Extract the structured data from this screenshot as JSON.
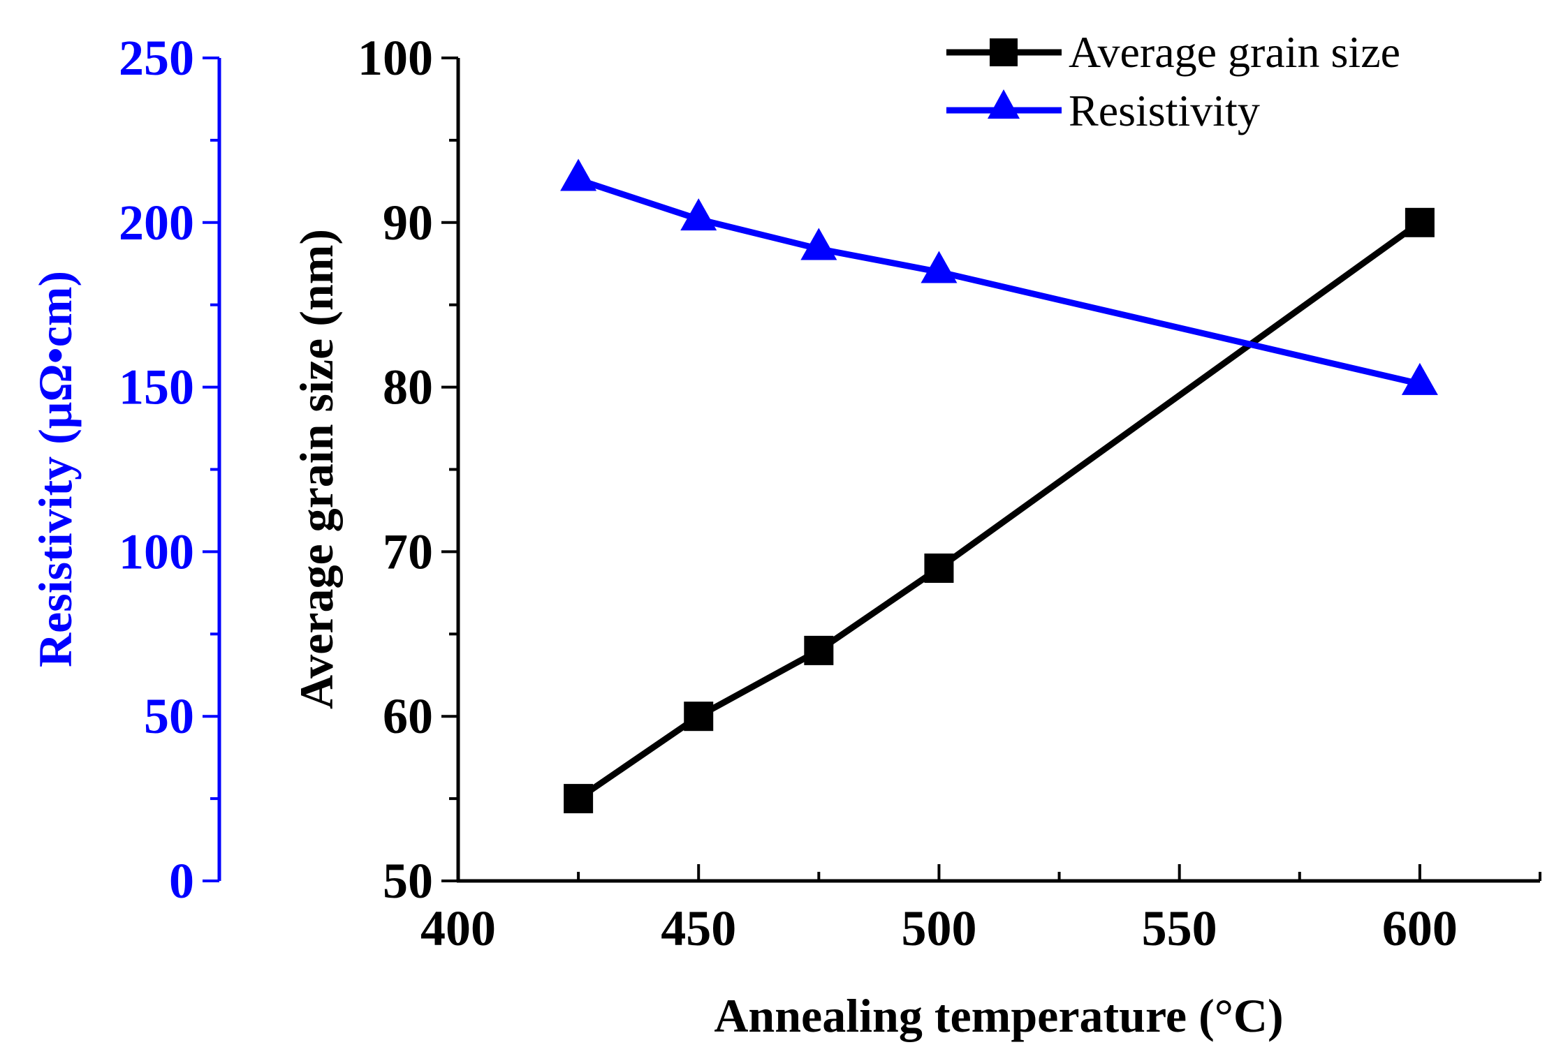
{
  "chart_data": {
    "type": "line",
    "title": "",
    "xlabel": "Annealing temperature (°C)",
    "ylabel_left_inner": "Average grain size (nm)",
    "ylabel_left_outer": "Resistivity (μΩ•cm)",
    "x_ticks": [
      "400",
      "450",
      "500",
      "550",
      "600"
    ],
    "y_ticks_grain": [
      "50",
      "60",
      "70",
      "80",
      "90",
      "100"
    ],
    "y_ticks_resistivity": [
      "0",
      "50",
      "100",
      "150",
      "200",
      "250"
    ],
    "xlim": [
      400,
      625
    ],
    "ylim_grain": [
      50,
      100
    ],
    "ylim_resistivity": [
      0,
      250
    ],
    "legend_position": "top-right",
    "series": [
      {
        "name": "Average grain size",
        "axis": "grain",
        "color": "#000000",
        "marker": "square",
        "x": [
          425,
          450,
          475,
          500,
          600
        ],
        "values": [
          55,
          60,
          64,
          69,
          90
        ]
      },
      {
        "name": "Resistivity",
        "axis": "resistivity",
        "color": "#0000ff",
        "marker": "triangle",
        "x": [
          425,
          450,
          475,
          500,
          600
        ],
        "values": [
          213,
          201,
          192,
          185,
          151
        ]
      }
    ]
  }
}
